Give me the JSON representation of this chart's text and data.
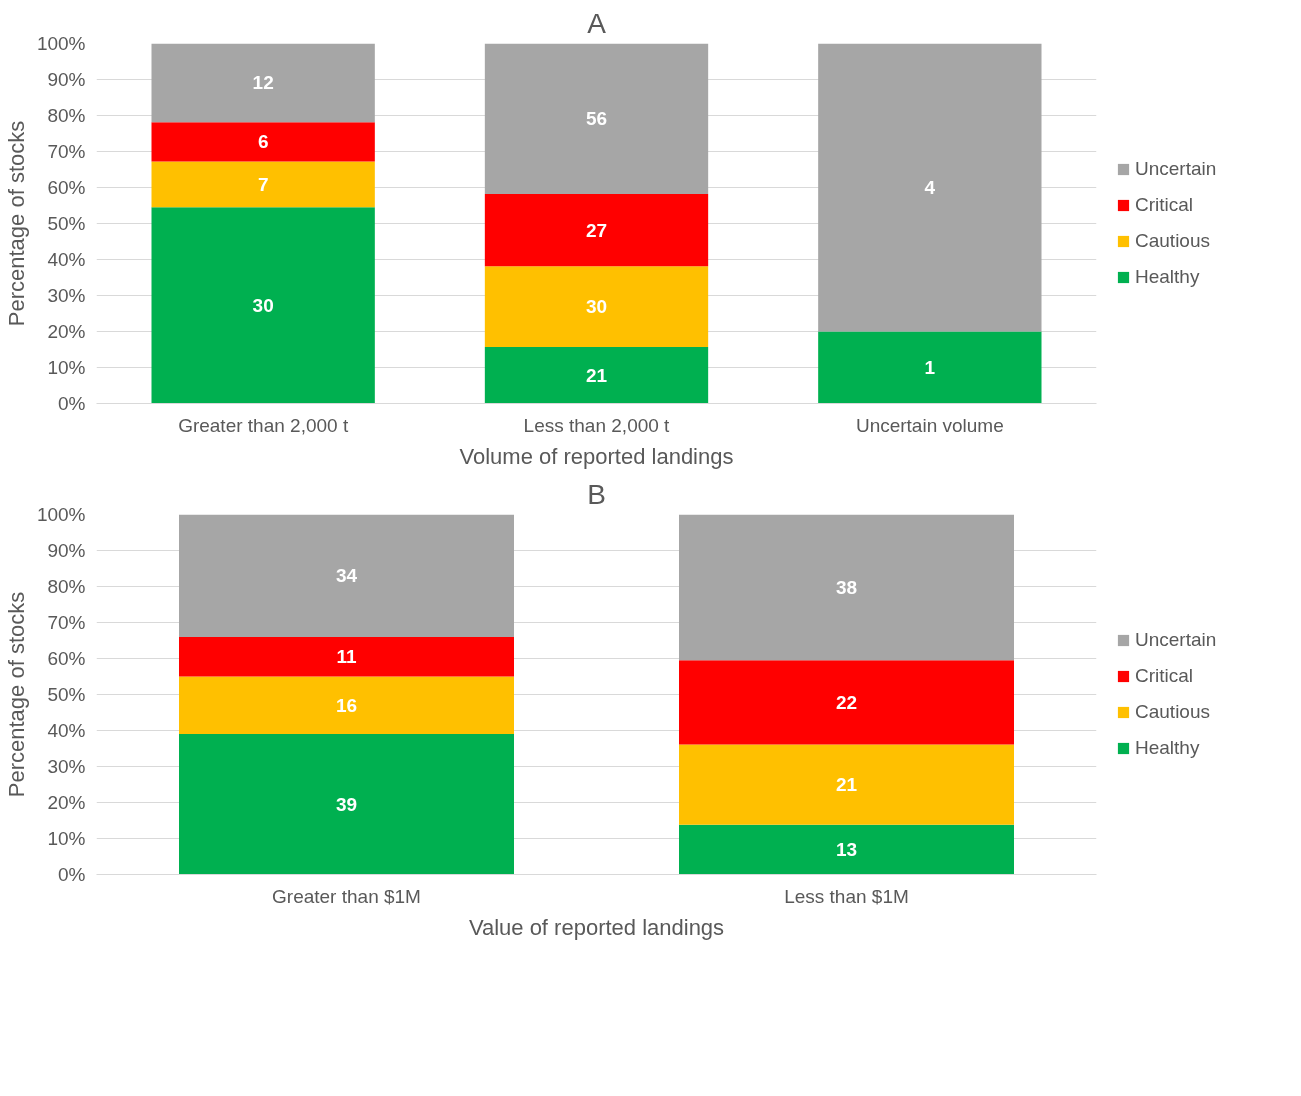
{
  "chart_data": [
    {
      "type": "bar",
      "stacked": true,
      "title": "A",
      "xlabel": "Volume of reported landings",
      "ylabel": "Percentage of stocks",
      "categories": [
        "Greater than 2,000 t",
        "Less than 2,000 t",
        "Uncertain volume"
      ],
      "series": [
        {
          "name": "Healthy",
          "color": "#00b050",
          "values": [
            54.5,
            15.7,
            20
          ]
        },
        {
          "name": "Cautious",
          "color": "#ffc000",
          "values": [
            12.7,
            22.4,
            0
          ]
        },
        {
          "name": "Critical",
          "color": "#ff0000",
          "values": [
            10.9,
            20.1,
            0
          ]
        },
        {
          "name": "Uncertain",
          "color": "#a6a6a6",
          "values": [
            21.9,
            41.8,
            80
          ]
        }
      ],
      "annotations": [
        "30",
        "7",
        "6",
        "12",
        "21",
        "30",
        "27",
        "56",
        "1",
        "4"
      ],
      "ylim": [
        0,
        100
      ],
      "yticks": [
        {
          "value": 0,
          "label": "0%"
        },
        {
          "value": 10,
          "label": "10%"
        },
        {
          "value": 20,
          "label": "20%"
        },
        {
          "value": 30,
          "label": "30%"
        },
        {
          "value": 40,
          "label": "40%"
        },
        {
          "value": 50,
          "label": "50%"
        },
        {
          "value": 60,
          "label": "60%"
        },
        {
          "value": 70,
          "label": "70%"
        },
        {
          "value": 80,
          "label": "80%"
        },
        {
          "value": 90,
          "label": "90%"
        },
        {
          "value": 100,
          "label": "100%"
        }
      ],
      "grid": "y",
      "legend": "right"
    },
    {
      "type": "bar",
      "stacked": true,
      "title": "B",
      "xlabel": "Value of reported landings",
      "ylabel": "Percentage of stocks",
      "categories": [
        "Greater than $1M",
        "Less than $1M"
      ],
      "series": [
        {
          "name": "Healthy",
          "color": "#00b050",
          "values": [
            39,
            13.8
          ]
        },
        {
          "name": "Cautious",
          "color": "#ffc000",
          "values": [
            16,
            22.3
          ]
        },
        {
          "name": "Critical",
          "color": "#ff0000",
          "values": [
            11,
            23.4
          ]
        },
        {
          "name": "Uncertain",
          "color": "#a6a6a6",
          "values": [
            34,
            40.5
          ]
        }
      ],
      "annotations": [
        "39",
        "16",
        "11",
        "34",
        "13",
        "21",
        "22",
        "38"
      ],
      "ylim": [
        0,
        100
      ],
      "yticks": [
        {
          "value": 0,
          "label": "0%"
        },
        {
          "value": 10,
          "label": "10%"
        },
        {
          "value": 20,
          "label": "20%"
        },
        {
          "value": 30,
          "label": "30%"
        },
        {
          "value": 40,
          "label": "40%"
        },
        {
          "value": 50,
          "label": "50%"
        },
        {
          "value": 60,
          "label": "60%"
        },
        {
          "value": 70,
          "label": "70%"
        },
        {
          "value": 80,
          "label": "80%"
        },
        {
          "value": 90,
          "label": "90%"
        },
        {
          "value": 100,
          "label": "100%"
        }
      ],
      "grid": "y",
      "legend": "right"
    }
  ]
}
